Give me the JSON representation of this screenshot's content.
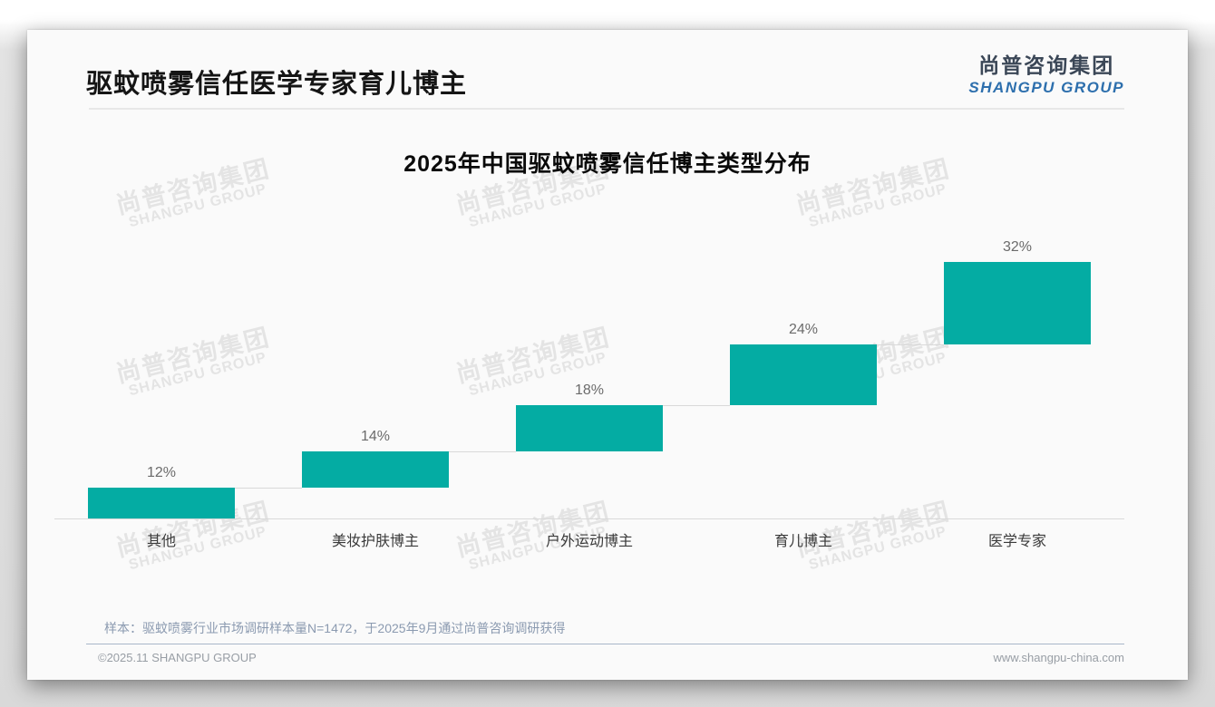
{
  "header": {
    "title": "驱蚊喷雾信任医学专家育儿博主",
    "logo_cn": "尚普咨询集团",
    "logo_en": "SHANGPU GROUP"
  },
  "watermark": {
    "line1": "尚普咨询集团",
    "line2": "SHANGPU GROUP"
  },
  "chart_data": {
    "type": "bar",
    "subtype": "waterfall-step",
    "title": "2025年中国驱蚊喷雾信任博主类型分布",
    "categories": [
      "其他",
      "美妆护肤博主",
      "户外运动博主",
      "育儿博主",
      "医学专家"
    ],
    "values": [
      12,
      14,
      18,
      24,
      32
    ],
    "value_labels": [
      "12%",
      "14%",
      "18%",
      "24%",
      "32%"
    ],
    "unit": "%",
    "ylim": [
      0,
      100
    ],
    "gridlines": false,
    "legend": false,
    "bar_color": "#04aca3",
    "value_label_color": "#6b6b6b",
    "axis_color": "#d9d9d9"
  },
  "footer": {
    "note": "样本：驱蚊喷雾行业市场调研样本量N=1472，于2025年9月通过尚普咨询调研获得",
    "copyright": "©2025.11 SHANGPU GROUP",
    "website": "www.shangpu-china.com"
  }
}
